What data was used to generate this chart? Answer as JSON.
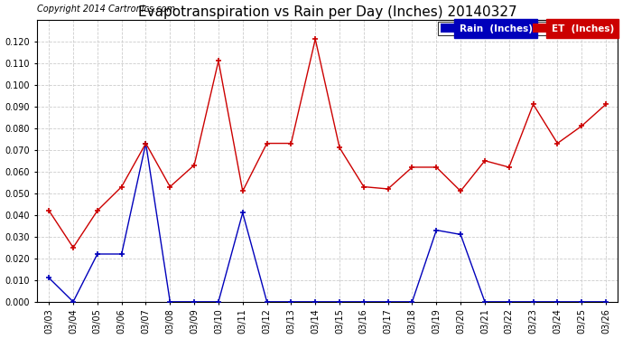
{
  "title": "Evapotranspiration vs Rain per Day (Inches) 20140327",
  "copyright": "Copyright 2014 Cartronics.com",
  "legend_rain": "Rain  (Inches)",
  "legend_et": "ET  (Inches)",
  "dates": [
    "03/03",
    "03/04",
    "03/05",
    "03/06",
    "03/07",
    "03/08",
    "03/09",
    "03/10",
    "03/11",
    "03/12",
    "03/13",
    "03/14",
    "03/15",
    "03/16",
    "03/17",
    "03/18",
    "03/19",
    "03/20",
    "03/21",
    "03/22",
    "03/23",
    "03/24",
    "03/25",
    "03/26"
  ],
  "rain": [
    0.011,
    0.0,
    0.022,
    0.022,
    0.073,
    0.0,
    0.0,
    0.0,
    0.041,
    0.0,
    0.0,
    0.0,
    0.0,
    0.0,
    0.0,
    0.0,
    0.033,
    0.031,
    0.0,
    0.0,
    0.0,
    0.0,
    0.0,
    0.0
  ],
  "et": [
    0.042,
    0.025,
    0.042,
    0.053,
    0.073,
    0.053,
    0.063,
    0.111,
    0.051,
    0.073,
    0.073,
    0.121,
    0.071,
    0.053,
    0.052,
    0.062,
    0.062,
    0.051,
    0.065,
    0.062,
    0.091,
    0.073,
    0.081,
    0.091
  ],
  "ylim": [
    0.0,
    0.13
  ],
  "yticks": [
    0.0,
    0.01,
    0.02,
    0.03,
    0.04,
    0.05,
    0.06,
    0.07,
    0.08,
    0.09,
    0.1,
    0.11,
    0.12
  ],
  "rain_color": "#0000bb",
  "et_color": "#cc0000",
  "bg_color": "#ffffff",
  "grid_color": "#cccccc",
  "title_fontsize": 11,
  "copyright_fontsize": 7,
  "tick_fontsize": 7,
  "legend_fontsize": 7.5
}
